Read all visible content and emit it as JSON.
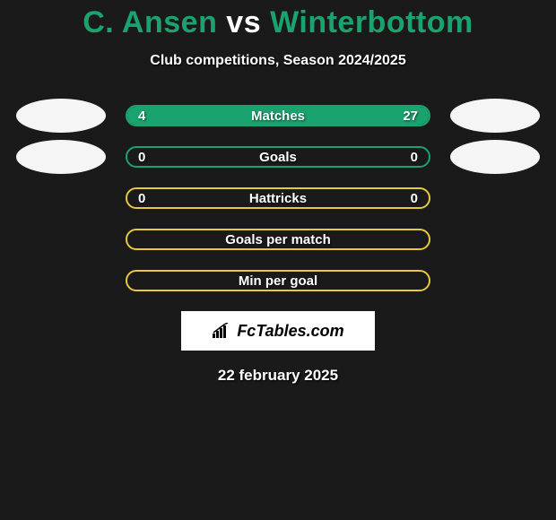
{
  "title": {
    "player_a": "C. Ansen",
    "vs": "vs",
    "player_b": "Winterbottom",
    "color_a": "#1aa36f",
    "color_vs": "#ffffff",
    "color_b": "#1aa36f"
  },
  "subtitle": "Club competitions, Season 2024/2025",
  "colors": {
    "bg": "#1a1a1a",
    "oval": "#f5f5f5",
    "green": "#1aa36f",
    "yellow": "#e8c83e",
    "text": "#ffffff"
  },
  "stats": [
    {
      "label": "Matches",
      "left_value": "4",
      "right_value": "27",
      "left_pct": 13,
      "right_pct": 87,
      "border_color": "#1aa36f",
      "fill_left_color": "#1aa36f",
      "fill_right_color": "#1aa36f",
      "show_left_oval": true,
      "show_right_oval": true
    },
    {
      "label": "Goals",
      "left_value": "0",
      "right_value": "0",
      "left_pct": 0,
      "right_pct": 0,
      "border_color": "#1aa36f",
      "fill_left_color": "#1aa36f",
      "fill_right_color": "#1aa36f",
      "show_left_oval": true,
      "show_right_oval": true
    },
    {
      "label": "Hattricks",
      "left_value": "0",
      "right_value": "0",
      "left_pct": 0,
      "right_pct": 0,
      "border_color": "#e8c83e",
      "fill_left_color": "#e8c83e",
      "fill_right_color": "#e8c83e",
      "show_left_oval": false,
      "show_right_oval": false
    },
    {
      "label": "Goals per match",
      "left_value": "",
      "right_value": "",
      "left_pct": 0,
      "right_pct": 0,
      "border_color": "#e8c83e",
      "fill_left_color": "#e8c83e",
      "fill_right_color": "#e8c83e",
      "show_left_oval": false,
      "show_right_oval": false
    },
    {
      "label": "Min per goal",
      "left_value": "",
      "right_value": "",
      "left_pct": 0,
      "right_pct": 0,
      "border_color": "#e8c83e",
      "fill_left_color": "#e8c83e",
      "fill_right_color": "#e8c83e",
      "show_left_oval": false,
      "show_right_oval": false
    }
  ],
  "brand": "FcTables.com",
  "date": "22 february 2025"
}
